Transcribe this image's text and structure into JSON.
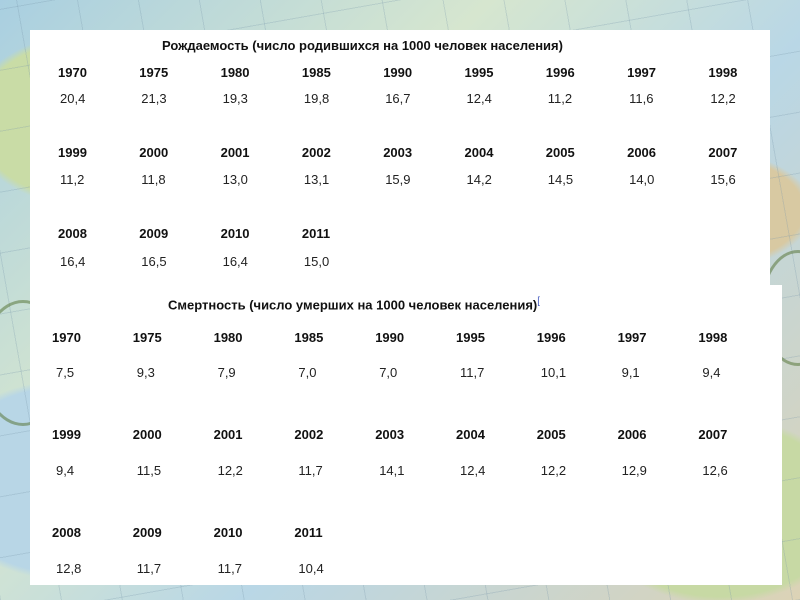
{
  "birth": {
    "title": "Рождаемость (число родившихся на 1000 человек населения)",
    "rows": [
      {
        "years": [
          "1970",
          "1975",
          "1980",
          "1985",
          "1990",
          "1995",
          "1996",
          "1997",
          "1998"
        ],
        "values": [
          "20,4",
          "21,3",
          "19,3",
          "19,8",
          "16,7",
          "12,4",
          "11,2",
          "11,6",
          "12,2"
        ]
      },
      {
        "years": [
          "1999",
          "2000",
          "2001",
          "2002",
          "2003",
          "2004",
          "2005",
          "2006",
          "2007"
        ],
        "values": [
          "11,2",
          "11,8",
          "13,0",
          "13,1",
          "15,9",
          "14,2",
          "14,5",
          "14,0",
          "15,6"
        ]
      },
      {
        "years": [
          "2008",
          "2009",
          "2010",
          "2011"
        ],
        "values": [
          "16,4",
          "16,5",
          "16,4",
          "15,0"
        ]
      }
    ]
  },
  "death": {
    "title": "Смертность (число умерших на 1000 человек населения)",
    "footnote": "[",
    "rows": [
      {
        "years": [
          "1970",
          "1975",
          "1980",
          "1985",
          "1990",
          "1995",
          "1996",
          "1997",
          "1998"
        ],
        "values": [
          "7,5",
          "9,3",
          "7,9",
          "7,0",
          "7,0",
          "11,7",
          "10,1",
          "9,1",
          "9,4"
        ]
      },
      {
        "years": [
          "1999",
          "2000",
          "2001",
          "2002",
          "2003",
          "2004",
          "2005",
          "2006",
          "2007"
        ],
        "values": [
          "9,4",
          "11,5",
          "12,2",
          "11,7",
          "14,1",
          "12,4",
          "12,2",
          "12,9",
          "12,6"
        ]
      },
      {
        "years": [
          "2008",
          "2009",
          "2010",
          "2011"
        ],
        "values": [
          "12,8",
          "11,7",
          "11,7",
          "10,4"
        ]
      }
    ]
  }
}
